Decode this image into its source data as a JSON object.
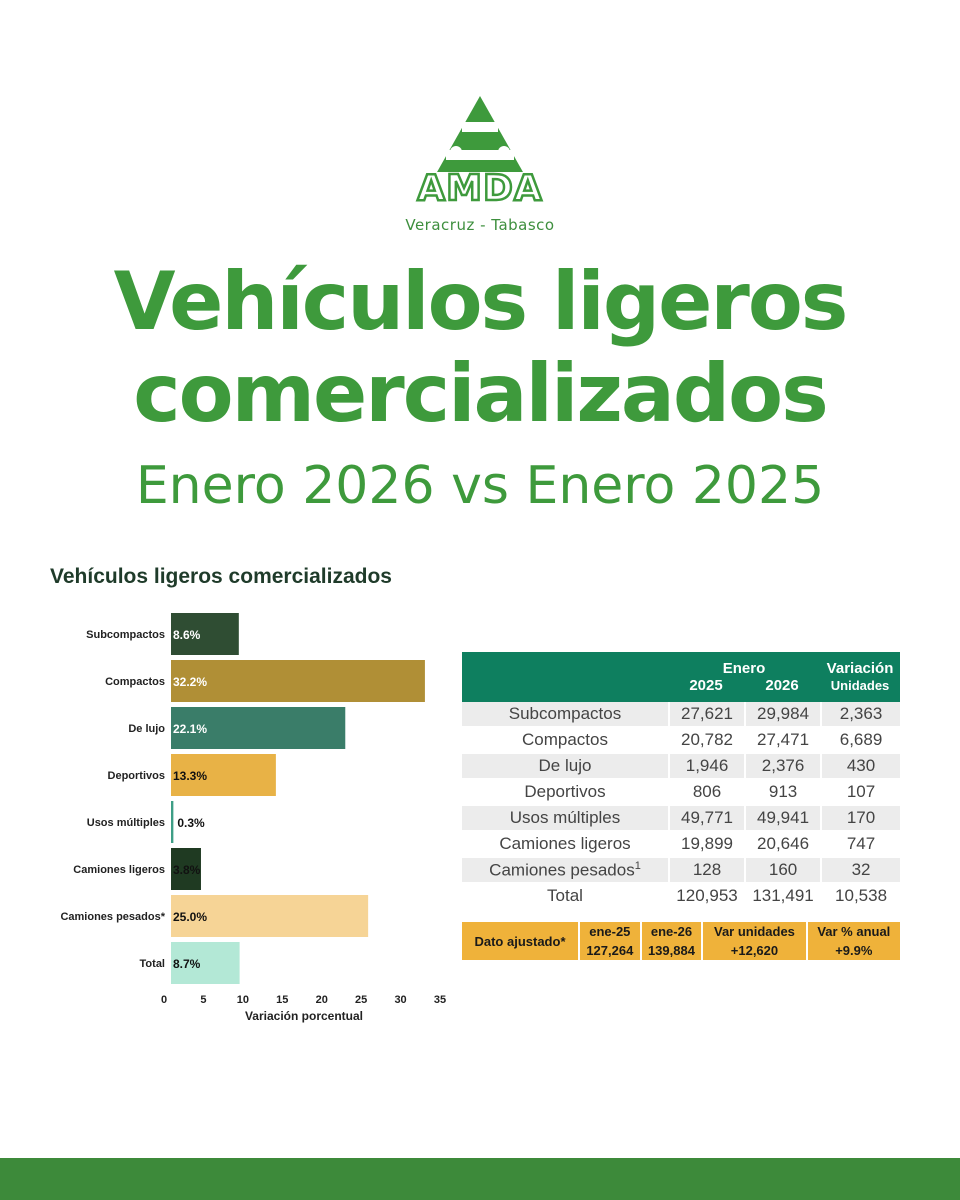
{
  "brand": {
    "logo_text": "AMDA",
    "region": "Veracruz - Tabasco",
    "color": "#3e9a3c"
  },
  "header": {
    "title_line1": "Vehículos ligeros",
    "title_line2": "comercializados",
    "subtitle": "Enero 2026 vs Enero 2025"
  },
  "chart_data": {
    "type": "bar",
    "orientation": "horizontal",
    "title": "Vehículos ligeros comercializados",
    "xlabel": "Variación porcentual",
    "ylabel": "",
    "xlim": [
      0,
      35
    ],
    "xticks": [
      0,
      5,
      10,
      15,
      20,
      25,
      30,
      35
    ],
    "grid": false,
    "categories": [
      "Subcompactos",
      "Compactos",
      "De lujo",
      "Deportivos",
      "Usos múltiples",
      "Camiones ligeros",
      "Camiones pesados*",
      "Total"
    ],
    "values": [
      8.6,
      32.2,
      22.1,
      13.3,
      0.3,
      3.8,
      25.0,
      8.7
    ],
    "labels": [
      "8.6%",
      "32.2%",
      "22.1%",
      "13.3%",
      "0.3%",
      "3.8%",
      "25.0%",
      "8.7%"
    ],
    "colors": [
      "#2f4d33",
      "#b08f36",
      "#3a7d69",
      "#e8b246",
      "#3e9e86",
      "#1f3a22",
      "#f6d496",
      "#b3e8d6"
    ]
  },
  "table": {
    "header": {
      "group": "Enero",
      "col1": "2025",
      "col2": "2026",
      "var_top": "Variación",
      "var_bottom": "Unidades"
    },
    "rows": [
      {
        "label": "Subcompactos",
        "y2025": "27,621",
        "y2026": "29,984",
        "var": "2,363"
      },
      {
        "label": "Compactos",
        "y2025": "20,782",
        "y2026": "27,471",
        "var": "6,689"
      },
      {
        "label": "De lujo",
        "y2025": "1,946",
        "y2026": "2,376",
        "var": "430"
      },
      {
        "label": "Deportivos",
        "y2025": "806",
        "y2026": "913",
        "var": "107"
      },
      {
        "label": "Usos múltiples",
        "y2025": "49,771",
        "y2026": "49,941",
        "var": "170"
      },
      {
        "label": "Camiones ligeros",
        "y2025": "19,899",
        "y2026": "20,646",
        "var": "747"
      },
      {
        "label": "Camiones pesados",
        "sup": "1",
        "y2025": "128",
        "y2026": "160",
        "var": "32"
      },
      {
        "label": "Total",
        "y2025": "120,953",
        "y2026": "131,491",
        "var": "10,538"
      }
    ],
    "adjusted": {
      "label": "Dato ajustado*",
      "c1_top": "ene-25",
      "c1_bottom": "127,264",
      "c2_top": "ene-26",
      "c2_bottom": "139,884",
      "c3_top": "Var unidades",
      "c3_bottom": "+12,620",
      "c4_top": "Var % anual",
      "c4_bottom": "+9.9%"
    },
    "header_color": "#0e7f5f",
    "adjusted_color": "#efb23a"
  }
}
